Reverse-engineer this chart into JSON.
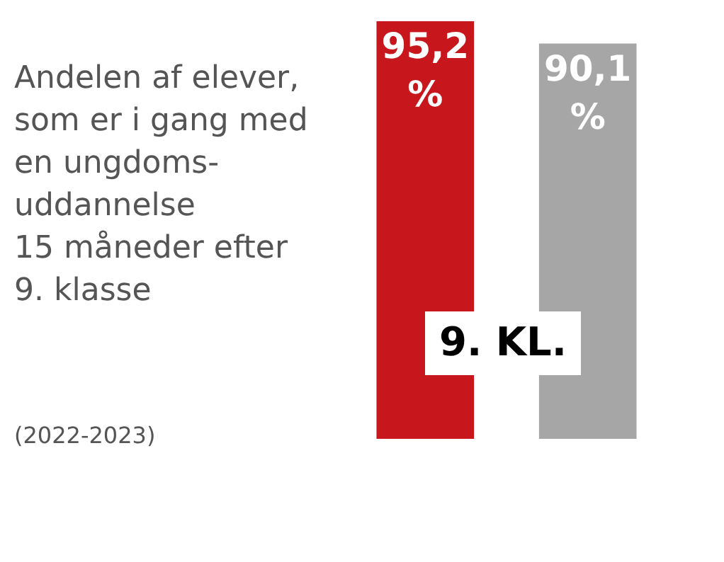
{
  "chart_data": {
    "type": "bar",
    "title": "Andelen af elever,\nsom er i gang med\nen ungdoms-\nuddannelse\n15 måneder efter\n9. klasse",
    "subtitle": "(2022-2023)",
    "categories": [
      null,
      null
    ],
    "values": [
      95.2,
      90.1
    ],
    "colors": [
      "#c8161d",
      "#a6a6a6"
    ],
    "value_labels": [
      "95,2 %",
      "90,1 %"
    ],
    "annotations": [
      "9. KL."
    ]
  }
}
